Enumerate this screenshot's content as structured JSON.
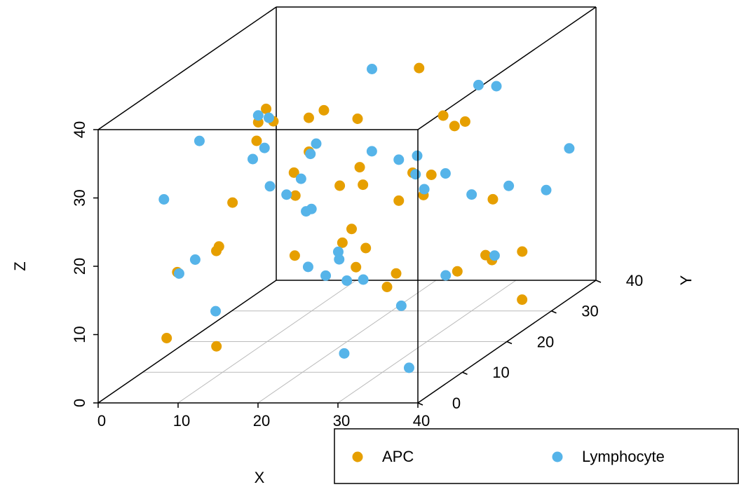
{
  "chart_data": {
    "type": "scatter3d",
    "xlabel": "X",
    "ylabel": "Y",
    "zlabel": "Z",
    "xlim": [
      0,
      40
    ],
    "ylim": [
      0,
      40
    ],
    "zlim": [
      0,
      40
    ],
    "xticks": [
      0,
      10,
      20,
      30,
      40
    ],
    "yticks": [
      0,
      10,
      20,
      30,
      40
    ],
    "zticks": [
      0,
      10,
      20,
      30,
      40
    ],
    "grid": true,
    "series": [
      {
        "name": "APC",
        "color": "#E69F00",
        "x": [
          3,
          8,
          12,
          15,
          18,
          22,
          25,
          28,
          31,
          35,
          38,
          5,
          10,
          14,
          20,
          24,
          27,
          33,
          36,
          39,
          2,
          7,
          11,
          16,
          19,
          23,
          29,
          32,
          37,
          6,
          13,
          17,
          21,
          26,
          30,
          34,
          9,
          4,
          28,
          15
        ],
        "y": [
          10,
          25,
          5,
          30,
          15,
          38,
          20,
          8,
          33,
          12,
          27,
          35,
          18,
          2,
          22,
          29,
          11,
          36,
          6,
          17,
          32,
          14,
          39,
          9,
          26,
          3,
          21,
          31,
          16,
          7,
          24,
          37,
          13,
          34,
          1,
          19,
          28,
          23,
          4,
          40
        ],
        "z": [
          5,
          30,
          20,
          12,
          35,
          25,
          8,
          38,
          15,
          28,
          3,
          18,
          33,
          22,
          10,
          36,
          27,
          6,
          31,
          14,
          24,
          2,
          17,
          39,
          11,
          29,
          21,
          7,
          34,
          16,
          26,
          13,
          37,
          4,
          23,
          32,
          9,
          19,
          30,
          1
        ]
      },
      {
        "name": "Lymphocyte",
        "color": "#56B4E9",
        "x": [
          1,
          6,
          9,
          13,
          17,
          21,
          24,
          27,
          30,
          34,
          37,
          40,
          4,
          8,
          12,
          16,
          19,
          23,
          26,
          29,
          33,
          36,
          39,
          3,
          7,
          11,
          15,
          20,
          25,
          31,
          35,
          38,
          2,
          10,
          14,
          18,
          22,
          28,
          32,
          5
        ],
        "y": [
          20,
          4,
          31,
          15,
          37,
          9,
          25,
          13,
          2,
          28,
          19,
          34,
          11,
          23,
          38,
          6,
          17,
          30,
          1,
          26,
          14,
          36,
          8,
          21,
          33,
          3,
          27,
          12,
          39,
          16,
          7,
          24,
          35,
          18,
          29,
          10,
          22,
          5,
          32,
          40
        ],
        "z": [
          12,
          28,
          6,
          35,
          19,
          24,
          3,
          31,
          17,
          9,
          38,
          22,
          14,
          27,
          1,
          33,
          11,
          20,
          36,
          7,
          25,
          15,
          30,
          4,
          18,
          37,
          10,
          23,
          13,
          29,
          2,
          21,
          16,
          34,
          8,
          26,
          39,
          5,
          32,
          20
        ]
      }
    ]
  }
}
